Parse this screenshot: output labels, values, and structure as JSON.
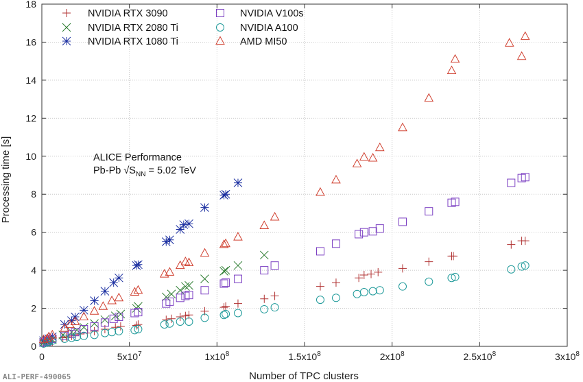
{
  "chart_data": {
    "type": "scatter",
    "xlabel": "Number of TPC clusters",
    "ylabel": "Processing time [s]",
    "xlim": [
      0,
      300000000
    ],
    "ylim": [
      0,
      18
    ],
    "x_ticks": [
      {
        "value": 0,
        "label": "0"
      },
      {
        "value": 50000000,
        "label": "5x10",
        "exp": "7"
      },
      {
        "value": 100000000,
        "label": "1x10",
        "exp": "8"
      },
      {
        "value": 150000000,
        "label": "1.5x10",
        "exp": "8"
      },
      {
        "value": 200000000,
        "label": "2x10",
        "exp": "8"
      },
      {
        "value": 250000000,
        "label": "2.5x10",
        "exp": "8"
      },
      {
        "value": 300000000,
        "label": "3x10",
        "exp": "8"
      }
    ],
    "y_ticks": [
      0,
      2,
      4,
      6,
      8,
      10,
      12,
      14,
      16,
      18
    ],
    "grid": true,
    "legend_position": "top-left",
    "annotation": {
      "line1": "ALICE Performance",
      "line2_prefix": "Pb-Pb √S",
      "line2_sub": "NN",
      "line2_suffix": " = 5.02 TeV"
    },
    "footer": "ALI-PERF-490065",
    "series": [
      {
        "name": "NVIDIA RTX 3090",
        "marker": "plus",
        "color": "#b03030",
        "x": [
          1000000,
          3000000,
          4000000,
          6000000,
          12000000,
          14000000,
          17000000,
          19000000,
          22000000,
          26000000,
          30000000,
          36000000,
          42000000,
          45000000,
          54000000,
          55000000,
          71000000,
          74000000,
          79000000,
          82000000,
          84000000,
          93000000,
          104000000,
          105000000,
          112000000,
          127000000,
          133000000,
          159000000,
          168000000,
          181000000,
          184000000,
          188000000,
          192000000,
          206000000,
          221000000,
          234000000,
          235000000,
          268000000,
          274000000,
          276000000
        ],
        "y": [
          0.15,
          0.18,
          0.2,
          0.25,
          0.45,
          0.5,
          0.55,
          0.6,
          0.65,
          0.7,
          0.8,
          0.9,
          1.0,
          1.05,
          1.1,
          1.15,
          1.4,
          1.45,
          1.55,
          1.6,
          1.65,
          1.85,
          2.05,
          2.1,
          2.25,
          2.5,
          2.65,
          3.15,
          3.35,
          3.6,
          3.75,
          3.8,
          3.9,
          4.1,
          4.45,
          4.75,
          4.75,
          5.35,
          5.55,
          5.55
        ]
      },
      {
        "name": "NVIDIA RTX 2080 Ti",
        "marker": "cross",
        "color": "#2e7d32",
        "x": [
          1000000,
          3000000,
          4000000,
          6000000,
          12000000,
          17000000,
          20000000,
          24000000,
          30000000,
          36000000,
          42000000,
          45000000,
          54000000,
          55000000,
          71000000,
          74000000,
          79000000,
          82000000,
          84000000,
          93000000,
          104000000,
          105000000,
          112000000,
          127000000
        ],
        "y": [
          0.2,
          0.25,
          0.3,
          0.35,
          0.6,
          0.75,
          0.85,
          1.0,
          1.2,
          1.4,
          1.6,
          1.7,
          2.0,
          2.1,
          2.6,
          2.75,
          2.95,
          3.15,
          3.2,
          3.55,
          3.95,
          4.0,
          4.25,
          4.8
        ]
      },
      {
        "name": "NVIDIA RTX 1080 Ti",
        "marker": "star",
        "color": "#1a2ea0",
        "x": [
          1000000,
          3000000,
          4000000,
          6000000,
          13000000,
          17000000,
          19000000,
          24000000,
          30000000,
          36000000,
          41000000,
          44000000,
          54000000,
          55000000,
          71000000,
          73000000,
          79000000,
          81000000,
          84000000,
          93000000,
          104000000,
          105000000,
          112000000
        ],
        "y": [
          0.3,
          0.35,
          0.4,
          0.5,
          1.15,
          1.35,
          1.55,
          1.9,
          2.4,
          2.9,
          3.35,
          3.6,
          4.25,
          4.3,
          5.5,
          5.6,
          6.15,
          6.4,
          6.45,
          7.3,
          7.95,
          8.0,
          8.6
        ]
      },
      {
        "name": "NVIDIA V100s",
        "marker": "square",
        "color": "#7b3fc2",
        "x": [
          1000000,
          3000000,
          4000000,
          6000000,
          13000000,
          17000000,
          19000000,
          24000000,
          30000000,
          36000000,
          41000000,
          44000000,
          53000000,
          55000000,
          71000000,
          73000000,
          79000000,
          82000000,
          84000000,
          93000000,
          104000000,
          105000000,
          112000000,
          127000000,
          133000000,
          159000000,
          168000000,
          181000000,
          184000000,
          189000000,
          193000000,
          206000000,
          221000000,
          234000000,
          236000000,
          268000000,
          274000000,
          276000000
        ],
        "y": [
          0.2,
          0.25,
          0.3,
          0.4,
          0.55,
          0.65,
          0.75,
          0.9,
          1.05,
          1.25,
          1.45,
          1.55,
          1.75,
          1.8,
          2.25,
          2.35,
          2.55,
          2.65,
          2.7,
          2.95,
          3.3,
          3.35,
          3.55,
          4.0,
          4.25,
          5.0,
          5.4,
          5.9,
          6.0,
          6.05,
          6.2,
          6.55,
          7.1,
          7.55,
          7.6,
          8.6,
          8.85,
          8.9
        ]
      },
      {
        "name": "NVIDIA A100",
        "marker": "circle",
        "color": "#1f9a9a",
        "x": [
          1000000,
          3000000,
          4000000,
          6000000,
          13000000,
          17000000,
          20000000,
          24000000,
          30000000,
          36000000,
          40000000,
          44000000,
          53000000,
          55000000,
          70000000,
          73000000,
          79000000,
          84000000,
          93000000,
          104000000,
          105000000,
          112000000,
          127000000,
          133000000,
          159000000,
          168000000,
          180000000,
          184000000,
          189000000,
          193000000,
          206000000,
          221000000,
          234000000,
          236000000,
          268000000,
          274000000,
          276000000
        ],
        "y": [
          0.15,
          0.2,
          0.25,
          0.3,
          0.4,
          0.45,
          0.5,
          0.55,
          0.6,
          0.7,
          0.75,
          0.8,
          0.85,
          0.9,
          1.15,
          1.2,
          1.3,
          1.3,
          1.5,
          1.65,
          1.7,
          1.75,
          1.95,
          2.05,
          2.45,
          2.55,
          2.75,
          2.85,
          2.9,
          2.95,
          3.15,
          3.4,
          3.6,
          3.65,
          4.05,
          4.2,
          4.25
        ]
      },
      {
        "name": "AMD MI50",
        "marker": "triangle",
        "color": "#d04030",
        "x": [
          1000000,
          3000000,
          4000000,
          6000000,
          13000000,
          16000000,
          19000000,
          24000000,
          30000000,
          35000000,
          40000000,
          44000000,
          53000000,
          55000000,
          70000000,
          73000000,
          79000000,
          82000000,
          84000000,
          93000000,
          104000000,
          105000000,
          112000000,
          127000000,
          133000000,
          159000000,
          168000000,
          180000000,
          184000000,
          189000000,
          193000000,
          206000000,
          221000000,
          234000000,
          236000000,
          267000000,
          274000000,
          276000000
        ],
        "y": [
          0.35,
          0.4,
          0.5,
          0.6,
          0.95,
          1.15,
          1.3,
          1.55,
          1.85,
          2.1,
          2.4,
          2.55,
          2.85,
          2.95,
          3.8,
          3.9,
          4.25,
          4.45,
          4.4,
          4.9,
          5.35,
          5.4,
          5.75,
          6.35,
          6.8,
          8.1,
          8.75,
          9.6,
          9.95,
          9.9,
          10.45,
          11.5,
          13.05,
          14.5,
          15.1,
          15.95,
          15.25,
          16.3
        ]
      }
    ]
  }
}
